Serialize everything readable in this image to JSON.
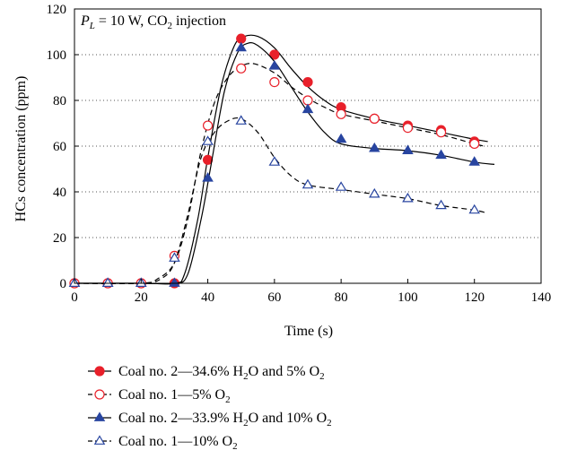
{
  "chart_data": {
    "type": "line",
    "title": "",
    "annotation": {
      "symbol": "P",
      "symbol_sub": "L",
      "rest": " = 10 W, CO",
      "rest_sub": "2",
      "tail": " injection"
    },
    "xlabel": "Time (s)",
    "ylabel": "HCs concentration (ppm)",
    "xlim": [
      0,
      140
    ],
    "ylim": [
      0,
      120
    ],
    "xticks": [
      0,
      20,
      40,
      60,
      80,
      100,
      120,
      140
    ],
    "yticks": [
      0,
      20,
      40,
      60,
      80,
      100,
      120
    ],
    "grid": "horizontal-dotted",
    "legend_position": "bottom",
    "series": [
      {
        "name": "Coal no. 2—34.6% H2O and 5% O2",
        "legend_parts": [
          "Coal no. 2—34.6% H",
          "2",
          "O and 5% O",
          "2"
        ],
        "marker": "circle-filled",
        "color": "#e8202a",
        "line_style": "solid",
        "x": [
          0,
          10,
          20,
          30,
          40,
          50,
          60,
          70,
          80,
          90,
          100,
          110,
          120
        ],
        "y": [
          0,
          0,
          0,
          0,
          54,
          107,
          100,
          88,
          77,
          72,
          69,
          67,
          62
        ],
        "curve": [
          [
            0,
            0
          ],
          [
            20,
            0
          ],
          [
            30,
            0
          ],
          [
            33,
            4
          ],
          [
            37,
            28
          ],
          [
            40,
            55
          ],
          [
            44,
            86
          ],
          [
            48,
            104
          ],
          [
            51,
            108
          ],
          [
            55,
            108
          ],
          [
            60,
            103
          ],
          [
            65,
            94
          ],
          [
            70,
            86
          ],
          [
            75,
            80
          ],
          [
            80,
            76
          ],
          [
            90,
            72
          ],
          [
            100,
            69
          ],
          [
            110,
            66
          ],
          [
            120,
            63
          ],
          [
            124,
            62
          ]
        ]
      },
      {
        "name": "Coal no. 1—5% O2",
        "legend_parts": [
          "Coal no. 1—5% O",
          "2",
          "",
          ""
        ],
        "marker": "circle-open",
        "color": "#e8202a",
        "line_style": "dashed",
        "x": [
          0,
          10,
          20,
          30,
          40,
          50,
          60,
          70,
          80,
          90,
          100,
          110,
          120
        ],
        "y": [
          0,
          0,
          0,
          12,
          69,
          94,
          88,
          80,
          74,
          72,
          68,
          66,
          61
        ],
        "curve": [
          [
            0,
            0
          ],
          [
            20,
            0
          ],
          [
            25,
            2
          ],
          [
            30,
            9
          ],
          [
            34,
            28
          ],
          [
            38,
            58
          ],
          [
            42,
            79
          ],
          [
            46,
            90
          ],
          [
            50,
            95
          ],
          [
            54,
            96
          ],
          [
            60,
            92
          ],
          [
            65,
            86
          ],
          [
            70,
            81
          ],
          [
            75,
            77
          ],
          [
            80,
            74
          ],
          [
            90,
            71
          ],
          [
            100,
            68
          ],
          [
            110,
            65
          ],
          [
            120,
            61
          ],
          [
            123,
            60
          ]
        ]
      },
      {
        "name": "Coal no. 2—33.9% H2O and 10% O2",
        "legend_parts": [
          "Coal no. 2—33.9% H",
          "2",
          "O and 10% O",
          "2"
        ],
        "marker": "triangle-filled",
        "color": "#2845a0",
        "line_style": "solid",
        "x": [
          0,
          10,
          20,
          30,
          40,
          50,
          60,
          70,
          80,
          90,
          100,
          110,
          120
        ],
        "y": [
          0,
          0,
          0,
          0,
          46,
          103,
          95,
          76,
          63,
          59,
          58,
          56,
          53
        ],
        "curve": [
          [
            0,
            0
          ],
          [
            20,
            0
          ],
          [
            30,
            0
          ],
          [
            34,
            4
          ],
          [
            38,
            28
          ],
          [
            41,
            52
          ],
          [
            45,
            84
          ],
          [
            49,
            101
          ],
          [
            52,
            105
          ],
          [
            55,
            104
          ],
          [
            60,
            97
          ],
          [
            65,
            86
          ],
          [
            70,
            75
          ],
          [
            75,
            66
          ],
          [
            80,
            61
          ],
          [
            90,
            59
          ],
          [
            100,
            58
          ],
          [
            110,
            56
          ],
          [
            120,
            53
          ],
          [
            126,
            52
          ]
        ]
      },
      {
        "name": "Coal no. 1—10% O2",
        "legend_parts": [
          "Coal no. 1—10% O",
          "2",
          "",
          ""
        ],
        "marker": "triangle-open",
        "color": "#2845a0",
        "line_style": "dashed",
        "x": [
          0,
          10,
          20,
          30,
          40,
          50,
          60,
          70,
          80,
          90,
          100,
          110,
          120
        ],
        "y": [
          0,
          0,
          0,
          11,
          62,
          71,
          53,
          43,
          42,
          39,
          37,
          34,
          32
        ],
        "curve": [
          [
            0,
            0
          ],
          [
            20,
            0
          ],
          [
            26,
            2
          ],
          [
            30,
            9
          ],
          [
            34,
            30
          ],
          [
            38,
            55
          ],
          [
            42,
            66
          ],
          [
            46,
            71
          ],
          [
            50,
            72
          ],
          [
            55,
            66
          ],
          [
            60,
            55
          ],
          [
            65,
            47
          ],
          [
            70,
            43
          ],
          [
            80,
            41
          ],
          [
            90,
            39
          ],
          [
            100,
            37
          ],
          [
            110,
            34
          ],
          [
            120,
            32
          ],
          [
            123,
            31
          ]
        ]
      }
    ]
  }
}
